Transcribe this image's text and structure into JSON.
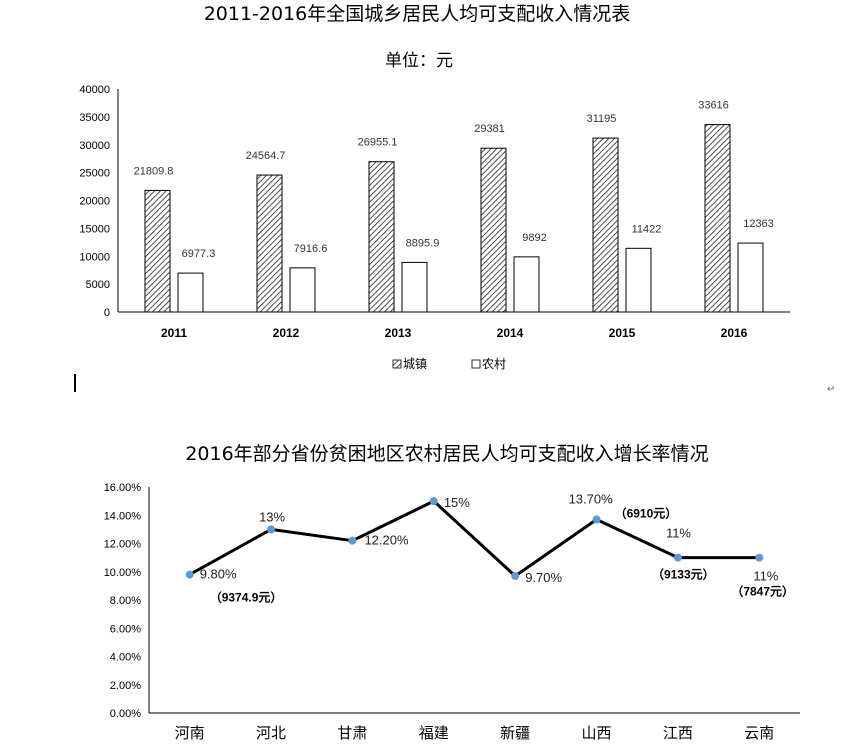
{
  "chart_data": [
    {
      "type": "bar",
      "title": "2011-2016年全国城乡居民人均可支配收入情况表",
      "subtitle": "单位：元",
      "categories": [
        "2011",
        "2012",
        "2013",
        "2014",
        "2015",
        "2016"
      ],
      "series": [
        {
          "name": "城镇",
          "values": [
            21809.8,
            24564.7,
            26955.1,
            29381,
            31195,
            33616
          ],
          "labels": [
            "21809.8",
            "24564.7",
            "26955.1",
            "29381",
            "31195",
            "33616"
          ],
          "pattern": "hatched"
        },
        {
          "name": "农村",
          "values": [
            6977.3,
            7916.6,
            8895.9,
            9892,
            11422,
            12363
          ],
          "labels": [
            "6977.3",
            "7916.6",
            "8895.9",
            "9892",
            "11422",
            "12363"
          ],
          "pattern": "white"
        }
      ],
      "ylim": [
        0,
        40000
      ],
      "yticks": [
        "0",
        "5000",
        "10000",
        "15000",
        "20000",
        "25000",
        "30000",
        "35000",
        "40000"
      ],
      "grid": false,
      "legend": "bottom"
    },
    {
      "type": "line",
      "title": "2016年部分省份贫困地区农村居民人均可支配收入增长率情况",
      "categories": [
        "河南",
        "河北",
        "甘肃",
        "福建",
        "新疆",
        "山西",
        "江西",
        "云南"
      ],
      "values": [
        9.8,
        13,
        12.2,
        15,
        9.7,
        13.7,
        11,
        11
      ],
      "labels": [
        "9.80%",
        "13%",
        "12.20%",
        "15%",
        "9.70%",
        "13.70%",
        "11%",
        "11%"
      ],
      "notes": [
        "（9374.9元）",
        "（6910元）",
        "（9133元）",
        "（7847元）"
      ],
      "ylim": [
        0,
        16
      ],
      "yticks": [
        "0.00%",
        "2.00%",
        "4.00%",
        "6.00%",
        "8.00%",
        "10.00%",
        "12.00%",
        "14.00%",
        "16.00%"
      ],
      "grid": false,
      "color": "#5b9bd5",
      "line_color": "#000000"
    }
  ],
  "marks": {
    "return_glyph": "↵"
  }
}
